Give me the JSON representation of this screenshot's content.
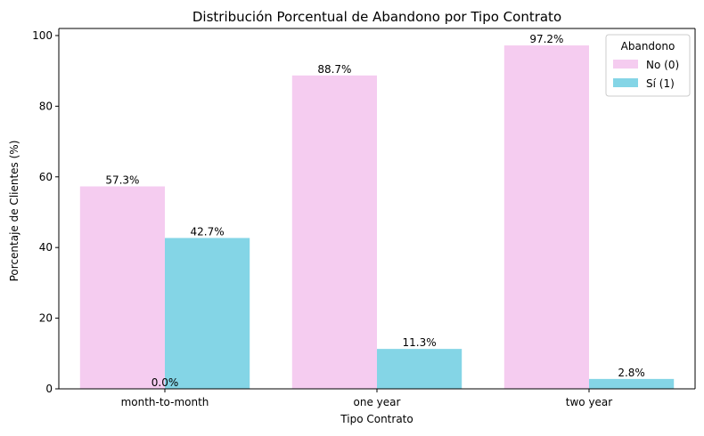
{
  "chart_data": {
    "type": "bar",
    "title": "Distribución Porcentual de Abandono por Tipo Contrato",
    "xlabel": "Tipo Contrato",
    "ylabel": "Porcentaje de Clientes (%)",
    "categories": [
      "month-to-month",
      "one year",
      "two year"
    ],
    "ylim": [
      0,
      102
    ],
    "yticks": [
      0,
      20,
      40,
      60,
      80,
      100
    ],
    "grid": false,
    "legend": {
      "title": "Abandono",
      "placement": "top-right"
    },
    "series": [
      {
        "name": "No (0)",
        "color": "#f5ccf0",
        "values": [
          57.3,
          88.7,
          97.2
        ],
        "labels": [
          "57.3%",
          "88.7%",
          "97.2%"
        ]
      },
      {
        "name": "Sí (1)",
        "color": "#84d5e6",
        "values": [
          42.7,
          11.3,
          2.8
        ],
        "labels": [
          "42.7%",
          "11.3%",
          "2.8%"
        ]
      }
    ],
    "annotations": [
      {
        "text": "0.0%",
        "category": "month-to-month",
        "y": 0
      }
    ]
  }
}
